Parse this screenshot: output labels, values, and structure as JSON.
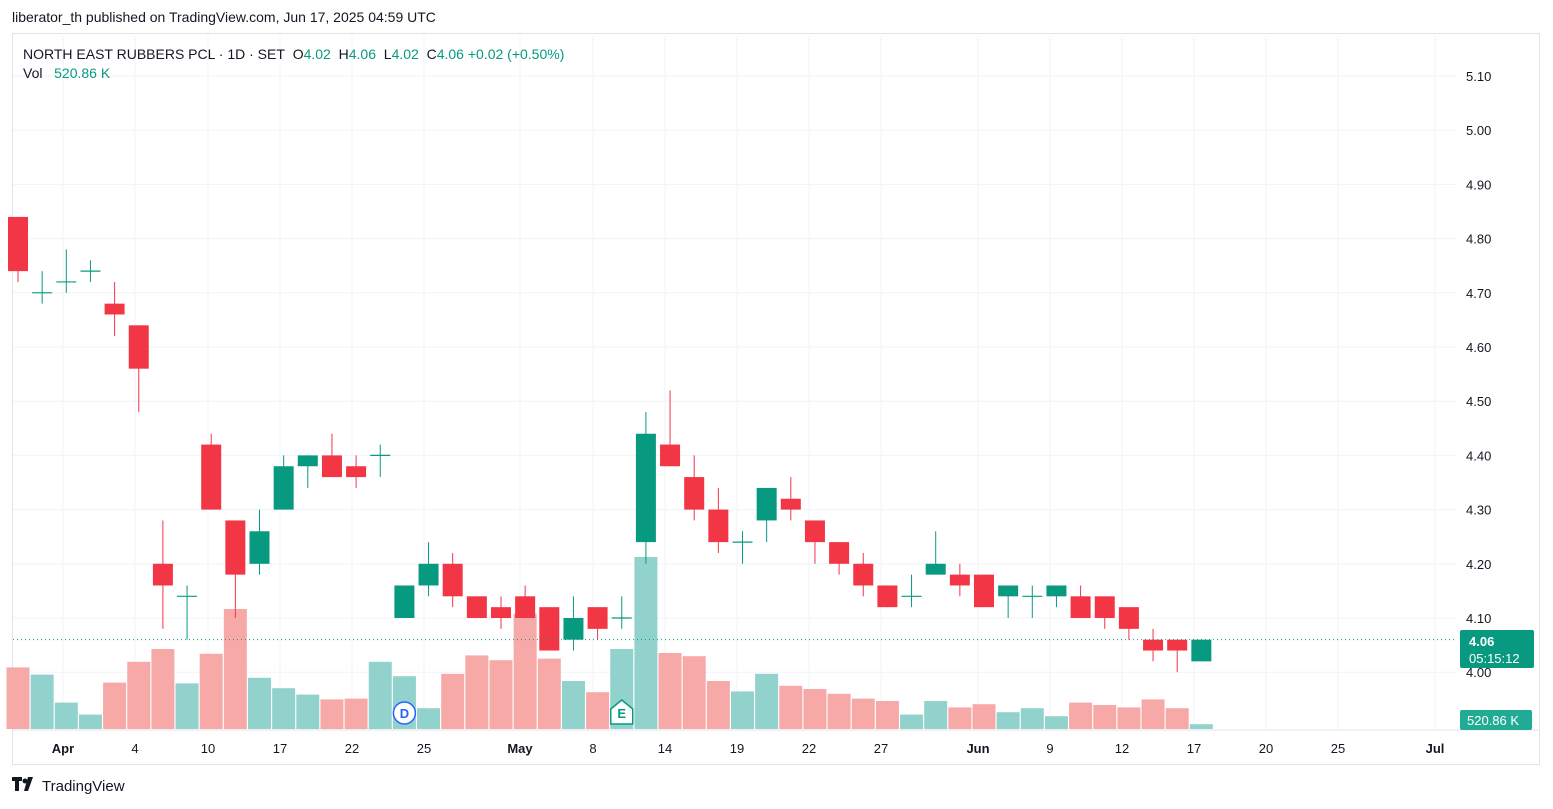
{
  "publisher_line": "liberator_th published on TradingView.com, Jun 17, 2025 04:59 UTC",
  "legend": {
    "symbol": "NORTH EAST RUBBERS PCL · 1D · SET",
    "o_label": "O",
    "o": "4.02",
    "h_label": "H",
    "h": "4.06",
    "l_label": "L",
    "l": "4.02",
    "c_label": "C",
    "c": "4.06",
    "change": "+0.02 (+0.50%)",
    "vol_label": "Vol",
    "vol": "520.86 K"
  },
  "price_tag": {
    "price": "4.06",
    "countdown": "05:15:12"
  },
  "volume_tag": "520.86 K",
  "brand": "TradingView",
  "colors": {
    "up": "#089981",
    "down": "#f23645",
    "up_vol": "#92d2cc",
    "down_vol": "#f7a9a7",
    "accent": "#2962ff"
  },
  "chart_data": {
    "type": "candlestick",
    "y_axis": {
      "min": 3.95,
      "max": 5.14,
      "ticks": [
        "4.00",
        "4.10",
        "4.20",
        "4.30",
        "4.40",
        "4.50",
        "4.60",
        "4.70",
        "4.80",
        "4.90",
        "5.00",
        "5.10"
      ]
    },
    "x_ticks": [
      "Apr",
      "4",
      "10",
      "17",
      "22",
      "25",
      "May",
      "8",
      "14",
      "19",
      "22",
      "27",
      "Jun",
      "9",
      "12",
      "17",
      "20",
      "25",
      "Jul"
    ],
    "last_price": 4.06,
    "events": [
      {
        "label": "D",
        "bar": 16
      },
      {
        "label": "E",
        "bar": 25
      }
    ],
    "ohlc": [
      [
        4.84,
        4.84,
        4.72,
        4.74
      ],
      [
        4.7,
        4.74,
        4.68,
        4.7
      ],
      [
        4.72,
        4.78,
        4.7,
        4.72
      ],
      [
        4.74,
        4.76,
        4.72,
        4.74
      ],
      [
        4.68,
        4.72,
        4.62,
        4.66
      ],
      [
        4.64,
        4.64,
        4.48,
        4.56
      ],
      [
        4.2,
        4.28,
        4.08,
        4.16
      ],
      [
        4.14,
        4.16,
        4.06,
        4.14
      ],
      [
        4.42,
        4.44,
        4.3,
        4.3
      ],
      [
        4.28,
        4.28,
        4.1,
        4.18
      ],
      [
        4.2,
        4.3,
        4.18,
        4.26
      ],
      [
        4.3,
        4.4,
        4.3,
        4.38
      ],
      [
        4.38,
        4.4,
        4.34,
        4.4
      ],
      [
        4.4,
        4.44,
        4.36,
        4.36
      ],
      [
        4.38,
        4.4,
        4.34,
        4.36
      ],
      [
        4.4,
        4.42,
        4.36,
        4.4
      ],
      [
        4.1,
        4.16,
        4.1,
        4.16
      ],
      [
        4.16,
        4.24,
        4.14,
        4.2
      ],
      [
        4.2,
        4.22,
        4.12,
        4.14
      ],
      [
        4.14,
        4.14,
        4.1,
        4.1
      ],
      [
        4.12,
        4.14,
        4.08,
        4.1
      ],
      [
        4.14,
        4.16,
        4.1,
        4.1
      ],
      [
        4.12,
        4.12,
        4.04,
        4.04
      ],
      [
        4.06,
        4.14,
        4.04,
        4.1
      ],
      [
        4.12,
        4.12,
        4.06,
        4.08
      ],
      [
        4.1,
        4.14,
        4.08,
        4.1
      ],
      [
        4.24,
        4.48,
        4.2,
        4.44
      ],
      [
        4.42,
        4.52,
        4.38,
        4.38
      ],
      [
        4.36,
        4.4,
        4.28,
        4.3
      ],
      [
        4.3,
        4.34,
        4.22,
        4.24
      ],
      [
        4.24,
        4.26,
        4.2,
        4.24
      ],
      [
        4.28,
        4.34,
        4.24,
        4.34
      ],
      [
        4.32,
        4.36,
        4.28,
        4.3
      ],
      [
        4.28,
        4.28,
        4.2,
        4.24
      ],
      [
        4.24,
        4.24,
        4.18,
        4.2
      ],
      [
        4.2,
        4.22,
        4.14,
        4.16
      ],
      [
        4.16,
        4.16,
        4.12,
        4.12
      ],
      [
        4.14,
        4.18,
        4.12,
        4.14
      ],
      [
        4.18,
        4.26,
        4.18,
        4.2
      ],
      [
        4.18,
        4.2,
        4.14,
        4.16
      ],
      [
        4.18,
        4.18,
        4.12,
        4.12
      ],
      [
        4.14,
        4.16,
        4.1,
        4.16
      ],
      [
        4.14,
        4.16,
        4.1,
        4.14
      ],
      [
        4.14,
        4.16,
        4.12,
        4.16
      ],
      [
        4.14,
        4.16,
        4.1,
        4.1
      ],
      [
        4.14,
        4.14,
        4.08,
        4.1
      ],
      [
        4.12,
        4.12,
        4.06,
        4.08
      ],
      [
        4.06,
        4.08,
        4.02,
        4.04
      ],
      [
        4.06,
        4.06,
        4.0,
        4.04
      ],
      [
        4.02,
        4.06,
        4.02,
        4.06
      ]
    ],
    "volume_rel": [
      0.77,
      0.68,
      0.33,
      0.18,
      0.58,
      0.84,
      1.0,
      0.57,
      0.94,
      1.5,
      0.64,
      0.51,
      0.43,
      0.37,
      0.38,
      0.84,
      0.66,
      0.26,
      0.69,
      0.92,
      0.86,
      1.44,
      0.88,
      0.6,
      0.46,
      1.0,
      2.15,
      0.95,
      0.91,
      0.6,
      0.47,
      0.69,
      0.54,
      0.5,
      0.44,
      0.38,
      0.35,
      0.18,
      0.35,
      0.27,
      0.31,
      0.21,
      0.26,
      0.16,
      0.33,
      0.3,
      0.27,
      0.37,
      0.26,
      0.06
    ]
  }
}
